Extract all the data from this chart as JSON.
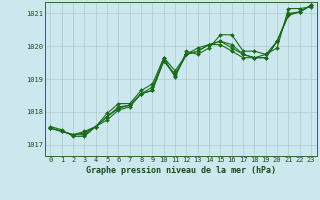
{
  "title": "Graphe pression niveau de la mer (hPa)",
  "xlabel_ticks": [
    0,
    1,
    2,
    3,
    4,
    5,
    6,
    7,
    8,
    9,
    10,
    11,
    12,
    13,
    14,
    15,
    16,
    17,
    18,
    19,
    20,
    21,
    22,
    23
  ],
  "ylim": [
    1016.65,
    1021.35
  ],
  "xlim": [
    -0.5,
    23.5
  ],
  "yticks": [
    1017,
    1018,
    1019,
    1020,
    1021
  ],
  "background_color": "#cce8ee",
  "grid_color": "#aacccc",
  "line_color": "#1a6b1a",
  "marker": "D",
  "markersize": 2.0,
  "linewidth": 0.8,
  "series": [
    [
      1017.55,
      1017.45,
      1017.25,
      1017.25,
      1017.55,
      1017.75,
      1018.05,
      1018.15,
      1018.55,
      1018.65,
      1019.65,
      1019.05,
      1019.85,
      1019.75,
      1019.95,
      1020.35,
      1020.35,
      1019.85,
      1019.85,
      1019.75,
      1019.95,
      1021.15,
      1021.15,
      1021.2
    ],
    [
      1017.5,
      1017.4,
      1017.3,
      1017.3,
      1017.55,
      1017.85,
      1018.1,
      1018.2,
      1018.55,
      1018.65,
      1019.55,
      1019.1,
      1019.75,
      1019.85,
      1020.05,
      1020.15,
      1020.05,
      1019.75,
      1019.65,
      1019.75,
      1020.15,
      1021.0,
      1021.05,
      1021.25
    ],
    [
      1017.5,
      1017.4,
      1017.3,
      1017.35,
      1017.55,
      1017.85,
      1018.15,
      1018.2,
      1018.55,
      1018.75,
      1019.55,
      1019.15,
      1019.75,
      1019.85,
      1020.05,
      1020.15,
      1019.95,
      1019.75,
      1019.65,
      1019.65,
      1020.15,
      1020.95,
      1021.05,
      1021.25
    ],
    [
      1017.5,
      1017.4,
      1017.3,
      1017.4,
      1017.55,
      1017.95,
      1018.25,
      1018.25,
      1018.65,
      1018.85,
      1019.65,
      1019.25,
      1019.75,
      1019.95,
      1020.05,
      1020.05,
      1019.85,
      1019.65,
      1019.65,
      1019.65,
      1020.15,
      1020.95,
      1021.05,
      1021.25
    ]
  ],
  "title_fontsize": 6.0,
  "tick_fontsize": 5.0,
  "title_color": "#1a4a1a",
  "tick_color": "#1a4a1a",
  "spine_color": "#336633"
}
